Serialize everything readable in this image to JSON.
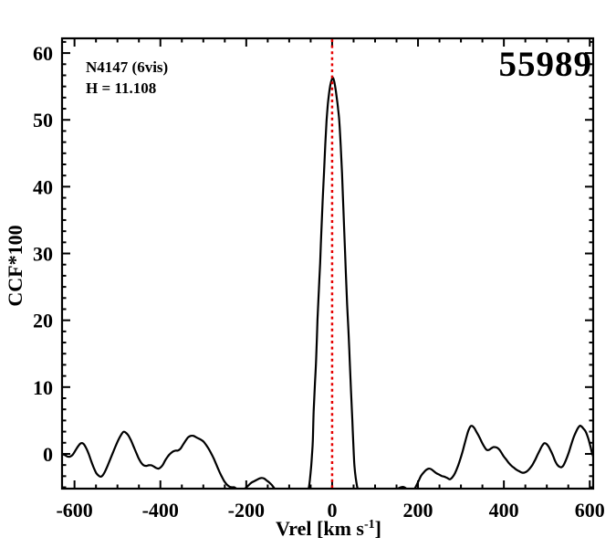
{
  "badge": "55989",
  "annotation": {
    "line1": "N4147 (6vis)",
    "line2": "H = 11.108"
  },
  "colors": {
    "curve": "#000000",
    "frame": "#000000",
    "refline": "#e60000",
    "background": "#ffffff",
    "text": "#000000"
  },
  "chart_data": {
    "type": "line",
    "title": "",
    "xlabel": {
      "pre": "Vrel [km s",
      "sup": "-1",
      "post": "]"
    },
    "ylabel": "CCF*100",
    "xlim": [
      -629,
      608
    ],
    "ylim": [
      -5.2,
      62.2
    ],
    "grid": false,
    "legend": null,
    "x_major_ticks": [
      -600,
      -400,
      -200,
      0,
      200,
      400,
      600
    ],
    "x_tick_labels": [
      "-600",
      "-400",
      "-200",
      "0",
      "200",
      "400",
      "600"
    ],
    "x_minor_divisions": 4,
    "y_major_ticks": [
      0,
      10,
      20,
      30,
      40,
      50,
      60
    ],
    "y_tick_labels": [
      "0",
      "10",
      "20",
      "30",
      "40",
      "50",
      "60"
    ],
    "y_minor_divisions": 6,
    "reference_line": {
      "x": 0,
      "color": "#e60000",
      "style": "dotted"
    },
    "series": [
      {
        "name": "CCF",
        "color": "#000000",
        "points": [
          [
            -629,
            0.0
          ],
          [
            -622,
            -0.2
          ],
          [
            -616,
            -0.4
          ],
          [
            -610,
            -0.4
          ],
          [
            -604,
            -0.1
          ],
          [
            -598,
            0.5
          ],
          [
            -591,
            1.2
          ],
          [
            -585,
            1.6
          ],
          [
            -579,
            1.5
          ],
          [
            -573,
            0.9
          ],
          [
            -567,
            0.0
          ],
          [
            -561,
            -1.1
          ],
          [
            -555,
            -2.1
          ],
          [
            -549,
            -2.9
          ],
          [
            -543,
            -3.3
          ],
          [
            -538,
            -3.4
          ],
          [
            -532,
            -3.0
          ],
          [
            -525,
            -2.1
          ],
          [
            -518,
            -1.0
          ],
          [
            -511,
            0.1
          ],
          [
            -504,
            1.2
          ],
          [
            -497,
            2.2
          ],
          [
            -491,
            2.9
          ],
          [
            -486,
            3.3
          ],
          [
            -481,
            3.2
          ],
          [
            -475,
            2.8
          ],
          [
            -469,
            2.1
          ],
          [
            -463,
            1.2
          ],
          [
            -457,
            0.3
          ],
          [
            -451,
            -0.6
          ],
          [
            -445,
            -1.3
          ],
          [
            -439,
            -1.7
          ],
          [
            -433,
            -1.8
          ],
          [
            -427,
            -1.7
          ],
          [
            -421,
            -1.7
          ],
          [
            -415,
            -1.9
          ],
          [
            -410,
            -2.1
          ],
          [
            -404,
            -2.2
          ],
          [
            -399,
            -2.0
          ],
          [
            -394,
            -1.6
          ],
          [
            -389,
            -1.0
          ],
          [
            -384,
            -0.5
          ],
          [
            -379,
            -0.1
          ],
          [
            -374,
            0.2
          ],
          [
            -369,
            0.4
          ],
          [
            -364,
            0.5
          ],
          [
            -359,
            0.5
          ],
          [
            -353,
            0.8
          ],
          [
            -347,
            1.4
          ],
          [
            -341,
            2.0
          ],
          [
            -335,
            2.5
          ],
          [
            -329,
            2.7
          ],
          [
            -323,
            2.7
          ],
          [
            -317,
            2.5
          ],
          [
            -311,
            2.3
          ],
          [
            -305,
            2.1
          ],
          [
            -299,
            1.8
          ],
          [
            -293,
            1.3
          ],
          [
            -287,
            0.7
          ],
          [
            -281,
            0.0
          ],
          [
            -275,
            -0.8
          ],
          [
            -269,
            -1.7
          ],
          [
            -263,
            -2.6
          ],
          [
            -257,
            -3.4
          ],
          [
            -251,
            -4.1
          ],
          [
            -245,
            -4.6
          ],
          [
            -239,
            -4.9
          ],
          [
            -233,
            -5.0
          ],
          [
            -228,
            -5.0
          ],
          [
            -223,
            -5.2
          ],
          [
            -218,
            -5.4
          ],
          [
            -213,
            -5.5
          ],
          [
            -208,
            -5.4
          ],
          [
            -203,
            -5.2
          ],
          [
            -198,
            -4.9
          ],
          [
            -193,
            -4.6
          ],
          [
            -188,
            -4.3
          ],
          [
            -182,
            -4.1
          ],
          [
            -176,
            -3.9
          ],
          [
            -170,
            -3.7
          ],
          [
            -164,
            -3.6
          ],
          [
            -158,
            -3.7
          ],
          [
            -152,
            -4.0
          ],
          [
            -146,
            -4.3
          ],
          [
            -140,
            -4.7
          ],
          [
            -134,
            -5.2
          ],
          [
            -127,
            -5.8
          ],
          [
            -119,
            -6.3
          ],
          [
            -110,
            -6.8
          ],
          [
            -100,
            -7.0
          ],
          [
            -90,
            -6.9
          ],
          [
            -81,
            -6.5
          ],
          [
            -73,
            -6.0
          ],
          [
            -66,
            -5.6
          ],
          [
            -60,
            -5.4
          ],
          [
            -55,
            -5.2
          ],
          [
            -52,
            -4.0
          ],
          [
            -49,
            -2.0
          ],
          [
            -47,
            -0.3
          ],
          [
            -45,
            2.0
          ],
          [
            -43,
            6.4
          ],
          [
            -40,
            10.5
          ],
          [
            -37,
            14.5
          ],
          [
            -34,
            20.1
          ],
          [
            -31,
            24.5
          ],
          [
            -28,
            28.5
          ],
          [
            -25,
            33.5
          ],
          [
            -22,
            38.0
          ],
          [
            -19,
            42.0
          ],
          [
            -16,
            46.2
          ],
          [
            -13,
            49.8
          ],
          [
            -10,
            52.3
          ],
          [
            -7,
            54.0
          ],
          [
            -4,
            55.3
          ],
          [
            -1,
            56.0
          ],
          [
            2,
            56.3
          ],
          [
            5,
            55.7
          ],
          [
            8,
            54.6
          ],
          [
            11,
            53.2
          ],
          [
            14,
            51.6
          ],
          [
            17,
            49.6
          ],
          [
            20,
            46.0
          ],
          [
            23,
            42.0
          ],
          [
            26,
            37.0
          ],
          [
            29,
            32.0
          ],
          [
            32,
            27.0
          ],
          [
            35,
            22.3
          ],
          [
            38,
            18.5
          ],
          [
            41,
            14.0
          ],
          [
            44,
            9.5
          ],
          [
            47,
            5.0
          ],
          [
            50,
            0.5
          ],
          [
            52,
            -1.8
          ],
          [
            55,
            -3.6
          ],
          [
            58,
            -4.8
          ],
          [
            61,
            -5.5
          ],
          [
            67,
            -6.2
          ],
          [
            75,
            -6.8
          ],
          [
            85,
            -7.2
          ],
          [
            97,
            -7.3
          ],
          [
            109,
            -7.1
          ],
          [
            120,
            -6.7
          ],
          [
            130,
            -6.2
          ],
          [
            139,
            -5.8
          ],
          [
            147,
            -5.5
          ],
          [
            153,
            -5.2
          ],
          [
            158,
            -5.05
          ],
          [
            163,
            -4.95
          ],
          [
            168,
            -5.0
          ],
          [
            173,
            -5.2
          ],
          [
            179,
            -5.5
          ],
          [
            185,
            -5.6
          ],
          [
            190,
            -5.4
          ],
          [
            195,
            -4.9
          ],
          [
            201,
            -4.1
          ],
          [
            207,
            -3.3
          ],
          [
            213,
            -2.8
          ],
          [
            219,
            -2.4
          ],
          [
            225,
            -2.2
          ],
          [
            231,
            -2.3
          ],
          [
            237,
            -2.6
          ],
          [
            243,
            -2.9
          ],
          [
            249,
            -3.1
          ],
          [
            255,
            -3.3
          ],
          [
            261,
            -3.4
          ],
          [
            268,
            -3.6
          ],
          [
            274,
            -3.8
          ],
          [
            280,
            -3.5
          ],
          [
            286,
            -2.9
          ],
          [
            292,
            -2.0
          ],
          [
            298,
            -0.9
          ],
          [
            304,
            0.4
          ],
          [
            309,
            1.6
          ],
          [
            314,
            2.8
          ],
          [
            318,
            3.6
          ],
          [
            322,
            4.1
          ],
          [
            325,
            4.2
          ],
          [
            328,
            4.1
          ],
          [
            332,
            3.8
          ],
          [
            337,
            3.2
          ],
          [
            343,
            2.5
          ],
          [
            349,
            1.7
          ],
          [
            355,
            1.0
          ],
          [
            360,
            0.6
          ],
          [
            365,
            0.6
          ],
          [
            370,
            0.8
          ],
          [
            375,
            1.0
          ],
          [
            380,
            1.0
          ],
          [
            385,
            0.9
          ],
          [
            390,
            0.6
          ],
          [
            395,
            0.1
          ],
          [
            400,
            -0.4
          ],
          [
            406,
            -0.9
          ],
          [
            412,
            -1.4
          ],
          [
            418,
            -1.8
          ],
          [
            424,
            -2.1
          ],
          [
            430,
            -2.4
          ],
          [
            436,
            -2.6
          ],
          [
            442,
            -2.8
          ],
          [
            448,
            -2.8
          ],
          [
            454,
            -2.6
          ],
          [
            460,
            -2.2
          ],
          [
            466,
            -1.7
          ],
          [
            472,
            -1.0
          ],
          [
            478,
            -0.2
          ],
          [
            484,
            0.6
          ],
          [
            489,
            1.2
          ],
          [
            494,
            1.6
          ],
          [
            499,
            1.5
          ],
          [
            504,
            1.1
          ],
          [
            509,
            0.5
          ],
          [
            514,
            -0.2
          ],
          [
            519,
            -1.0
          ],
          [
            524,
            -1.6
          ],
          [
            529,
            -1.9
          ],
          [
            534,
            -2.0
          ],
          [
            539,
            -1.7
          ],
          [
            544,
            -1.0
          ],
          [
            550,
            0.0
          ],
          [
            556,
            1.2
          ],
          [
            562,
            2.4
          ],
          [
            568,
            3.3
          ],
          [
            573,
            3.9
          ],
          [
            577,
            4.2
          ],
          [
            581,
            4.1
          ],
          [
            585,
            3.8
          ],
          [
            590,
            3.4
          ],
          [
            594,
            2.8
          ],
          [
            598,
            2.0
          ],
          [
            602,
            1.0
          ],
          [
            605,
            0.2
          ],
          [
            608,
            -0.4
          ]
        ]
      }
    ]
  }
}
